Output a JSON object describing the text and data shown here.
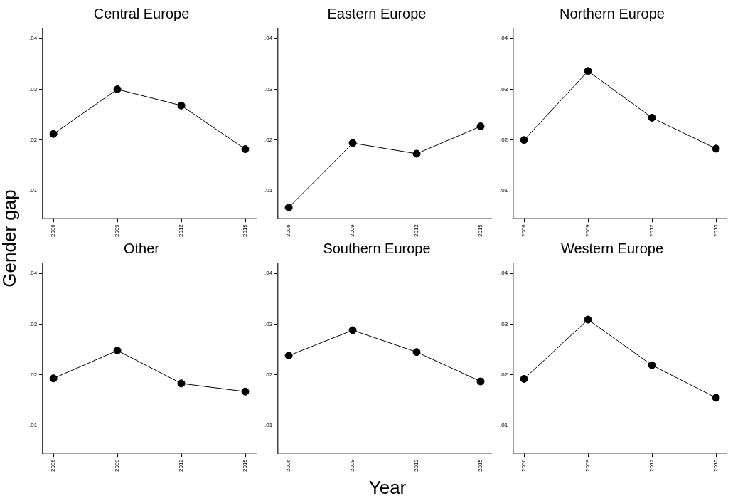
{
  "chart_data": [
    {
      "type": "line",
      "title": "Central Europe",
      "ylabel": "Gender gap",
      "x": [
        2006,
        2009,
        2012,
        2015
      ],
      "xlim": [
        2005.5,
        2015.5
      ],
      "xticks": [
        2006,
        2009,
        2012,
        2015
      ],
      "ylim": [
        0.0045,
        0.042
      ],
      "yticks": [
        {
          "value": 0.01,
          "label": ".01"
        },
        {
          "value": 0.02,
          "label": ".02"
        },
        {
          "value": 0.03,
          "label": ".03"
        },
        {
          "value": 0.04,
          "label": ".04"
        }
      ],
      "grid": false,
      "legend": false,
      "marker": "circle",
      "line_style": "solid",
      "series": [
        {
          "color": "#000000",
          "values": [
            0.0212,
            0.03,
            0.0268,
            0.0182
          ]
        }
      ]
    },
    {
      "type": "line",
      "title": "Eastern Europe",
      "x": [
        2006,
        2009,
        2012,
        2015
      ],
      "xlim": [
        2005.5,
        2015.5
      ],
      "xticks": [
        2006,
        2009,
        2012,
        2015
      ],
      "ylim": [
        0.0045,
        0.042
      ],
      "yticks": [
        {
          "value": 0.01,
          "label": ".01"
        },
        {
          "value": 0.02,
          "label": ".02"
        },
        {
          "value": 0.03,
          "label": ".03"
        },
        {
          "value": 0.04,
          "label": ".04"
        }
      ],
      "grid": false,
      "legend": false,
      "marker": "circle",
      "line_style": "solid",
      "series": [
        {
          "color": "#000000",
          "values": [
            0.0067,
            0.0194,
            0.0173,
            0.0227
          ]
        }
      ]
    },
    {
      "type": "line",
      "title": "Northern Europe",
      "x": [
        2006,
        2009,
        2012,
        2015
      ],
      "xlim": [
        2005.5,
        2015.5
      ],
      "xticks": [
        2006,
        2009,
        2012,
        2015
      ],
      "ylim": [
        0.0045,
        0.042
      ],
      "yticks": [
        {
          "value": 0.01,
          "label": ".01"
        },
        {
          "value": 0.02,
          "label": ".02"
        },
        {
          "value": 0.03,
          "label": ".03"
        },
        {
          "value": 0.04,
          "label": ".04"
        }
      ],
      "grid": false,
      "legend": false,
      "marker": "circle",
      "line_style": "solid",
      "series": [
        {
          "color": "#000000",
          "values": [
            0.02,
            0.0336,
            0.0244,
            0.0183
          ]
        }
      ]
    },
    {
      "type": "line",
      "title": "Other",
      "x": [
        2006,
        2009,
        2012,
        2015
      ],
      "xlim": [
        2005.5,
        2015.5
      ],
      "xticks": [
        2006,
        2009,
        2012,
        2015
      ],
      "ylim": [
        0.0045,
        0.042
      ],
      "yticks": [
        {
          "value": 0.01,
          "label": ".01"
        },
        {
          "value": 0.02,
          "label": ".02"
        },
        {
          "value": 0.03,
          "label": ".03"
        },
        {
          "value": 0.04,
          "label": ".04"
        }
      ],
      "grid": false,
      "legend": false,
      "marker": "circle",
      "line_style": "solid",
      "series": [
        {
          "color": "#000000",
          "values": [
            0.0193,
            0.0248,
            0.0183,
            0.0167
          ]
        }
      ]
    },
    {
      "type": "line",
      "title": "Southern Europe",
      "xlabel": "Year",
      "x": [
        2006,
        2009,
        2012,
        2015
      ],
      "xlim": [
        2005.5,
        2015.5
      ],
      "xticks": [
        2006,
        2009,
        2012,
        2015
      ],
      "ylim": [
        0.0045,
        0.042
      ],
      "yticks": [
        {
          "value": 0.01,
          "label": ".01"
        },
        {
          "value": 0.02,
          "label": ".02"
        },
        {
          "value": 0.03,
          "label": ".03"
        },
        {
          "value": 0.04,
          "label": ".04"
        }
      ],
      "grid": false,
      "legend": false,
      "marker": "circle",
      "line_style": "solid",
      "series": [
        {
          "color": "#000000",
          "values": [
            0.0238,
            0.0288,
            0.0245,
            0.0187
          ]
        }
      ]
    },
    {
      "type": "line",
      "title": "Western Europe",
      "x": [
        2006,
        2009,
        2012,
        2015
      ],
      "xlim": [
        2005.5,
        2015.5
      ],
      "xticks": [
        2006,
        2009,
        2012,
        2015
      ],
      "ylim": [
        0.0045,
        0.042
      ],
      "yticks": [
        {
          "value": 0.01,
          "label": ".01"
        },
        {
          "value": 0.02,
          "label": ".02"
        },
        {
          "value": 0.03,
          "label": ".03"
        },
        {
          "value": 0.04,
          "label": ".04"
        }
      ],
      "grid": false,
      "legend": false,
      "marker": "circle",
      "line_style": "solid",
      "series": [
        {
          "color": "#000000",
          "values": [
            0.0192,
            0.0309,
            0.0219,
            0.0155
          ]
        }
      ]
    }
  ]
}
